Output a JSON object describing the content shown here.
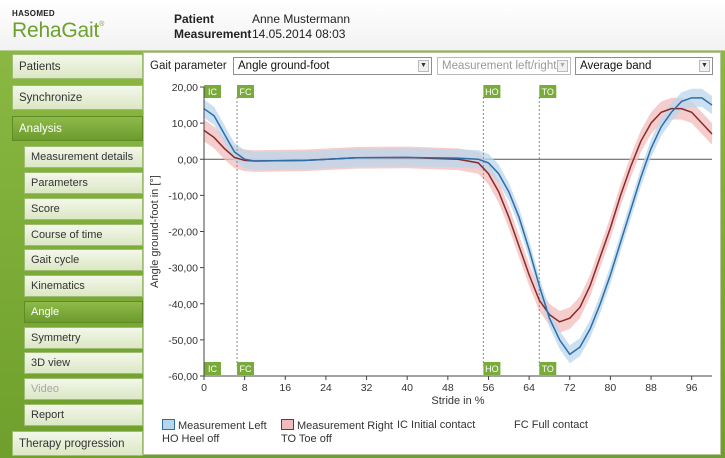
{
  "app": {
    "vendor": "HASOMED",
    "name": "RehaGait",
    "trademark": "®"
  },
  "header": {
    "patient_label": "Patient",
    "patient_value": "Anne Mustermann",
    "measurement_label": "Measurement",
    "measurement_value": "14.05.2014 08:03"
  },
  "sidebar": {
    "items": [
      {
        "label": "Patients",
        "level": "main",
        "state": "normal"
      },
      {
        "label": "Synchronize",
        "level": "main",
        "state": "normal"
      },
      {
        "label": "Analysis",
        "level": "main",
        "state": "active"
      },
      {
        "label": "Measurement details",
        "level": "sub",
        "state": "normal"
      },
      {
        "label": "Parameters",
        "level": "sub",
        "state": "normal"
      },
      {
        "label": "Score",
        "level": "sub",
        "state": "normal"
      },
      {
        "label": "Course of time",
        "level": "sub",
        "state": "normal"
      },
      {
        "label": "Gait cycle",
        "level": "sub",
        "state": "normal"
      },
      {
        "label": "Kinematics",
        "level": "sub",
        "state": "normal"
      },
      {
        "label": "Angle",
        "level": "sub",
        "state": "active"
      },
      {
        "label": "Symmetry",
        "level": "sub",
        "state": "normal"
      },
      {
        "label": "3D view",
        "level": "sub",
        "state": "normal"
      },
      {
        "label": "Video",
        "level": "sub",
        "state": "disabled"
      },
      {
        "label": "Report",
        "level": "sub",
        "state": "normal"
      },
      {
        "label": "Therapy progression",
        "level": "main",
        "state": "normal"
      }
    ]
  },
  "controls": {
    "gait_parameter_label": "Gait parameter",
    "parameter_select": "Angle ground-foot",
    "side_select": "Measurement left/right",
    "mode_select": "Average band"
  },
  "legend": {
    "left": "Measurement Left",
    "right": "Measurement Right",
    "ic": "IC Initial contact",
    "fc": "FC Full contact",
    "ho": "HO Heel off",
    "to": "TO Toe off"
  },
  "colors": {
    "accent": "#6da12d",
    "left_line": "#2d6da8",
    "left_band": "#b9d5ec",
    "right_line": "#8a2a2a",
    "right_band": "#f2bcbc",
    "event_marker": "#79ab3a"
  },
  "chart_data": {
    "type": "line",
    "xlabel": "Stride in %",
    "ylabel": "Angle ground-foot in [°]",
    "xlim": [
      0,
      100
    ],
    "ylim": [
      -60,
      20
    ],
    "xticks": [
      0,
      8,
      16,
      24,
      32,
      40,
      48,
      56,
      64,
      72,
      80,
      88,
      96
    ],
    "yticks": [
      20,
      10,
      0,
      -10,
      -20,
      -30,
      -40,
      -50,
      -60
    ],
    "ytick_labels": [
      "20,00",
      "10,00",
      "0,00",
      "-10,00",
      "-20,00",
      "-30,00",
      "-40,00",
      "-50,00",
      "-60,00"
    ],
    "events": [
      {
        "label": "IC",
        "x": 0
      },
      {
        "label": "FC",
        "x": 6.5
      },
      {
        "label": "HO",
        "x": 55
      },
      {
        "label": "TO",
        "x": 66
      }
    ],
    "series": [
      {
        "name": "Measurement Left",
        "x": [
          0,
          2,
          4,
          6,
          8,
          10,
          20,
          30,
          40,
          50,
          54,
          56,
          58,
          60,
          62,
          64,
          66,
          68,
          70,
          72,
          74,
          76,
          78,
          80,
          82,
          84,
          86,
          88,
          90,
          92,
          94,
          96,
          98,
          100
        ],
        "y": [
          14,
          12,
          7,
          2,
          0,
          -0.5,
          -0.3,
          0.4,
          0.5,
          0.3,
          0,
          -1,
          -4,
          -9,
          -16,
          -25,
          -35,
          -44,
          -50,
          -54,
          -52,
          -47,
          -40,
          -32,
          -23,
          -14,
          -5,
          3,
          9,
          13,
          16,
          17,
          17,
          15
        ],
        "band": 2.5
      },
      {
        "name": "Measurement Right",
        "x": [
          0,
          2,
          4,
          6,
          8,
          10,
          20,
          30,
          40,
          50,
          54,
          56,
          58,
          60,
          62,
          64,
          66,
          68,
          70,
          72,
          74,
          76,
          78,
          80,
          82,
          84,
          86,
          88,
          90,
          92,
          94,
          96,
          98,
          100
        ],
        "y": [
          8,
          6,
          3,
          0.5,
          -0.3,
          -0.5,
          -0.3,
          0.4,
          0.5,
          0,
          -1,
          -4,
          -9,
          -16,
          -24,
          -32,
          -39,
          -43,
          -45,
          -44,
          -41,
          -35,
          -27,
          -19,
          -10,
          -2,
          5,
          10,
          13,
          14,
          14,
          13,
          10,
          7
        ],
        "band": 3
      }
    ]
  }
}
